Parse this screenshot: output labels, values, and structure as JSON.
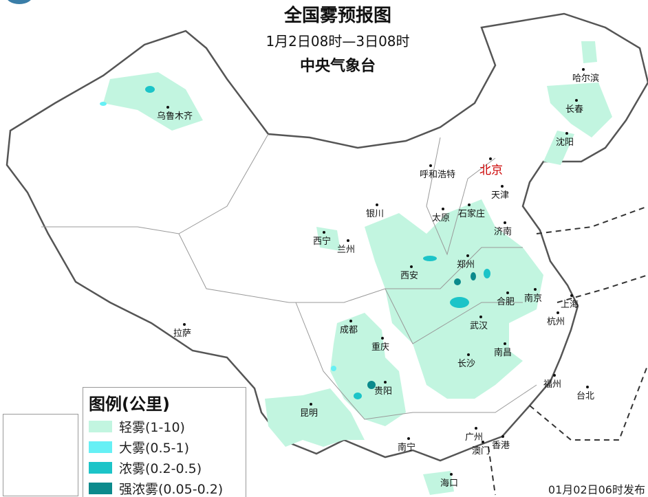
{
  "header": {
    "title": "全国雾预报图",
    "period": "1月2日08时—3日08时",
    "issuer": "中央气象台"
  },
  "legend": {
    "title": "图例(公里)",
    "items": [
      {
        "label": "轻雾(1-10)",
        "color": "#c2f5e0"
      },
      {
        "label": "大雾(0.5-1)",
        "color": "#66f0f5"
      },
      {
        "label": "浓雾(0.2-0.5)",
        "color": "#1cc4c8"
      },
      {
        "label": "强浓雾(0.05-0.2)",
        "color": "#0b8a8c"
      }
    ]
  },
  "cities": [
    {
      "name": "乌鲁木齐"
    },
    {
      "name": "哈尔滨"
    },
    {
      "name": "长春"
    },
    {
      "name": "沈阳"
    },
    {
      "name": "北京",
      "capital": true
    },
    {
      "name": "天津"
    },
    {
      "name": "呼和浩特"
    },
    {
      "name": "银川"
    },
    {
      "name": "太原"
    },
    {
      "name": "石家庄"
    },
    {
      "name": "济南"
    },
    {
      "name": "西宁"
    },
    {
      "name": "兰州"
    },
    {
      "name": "西安"
    },
    {
      "name": "郑州"
    },
    {
      "name": "合肥"
    },
    {
      "name": "南京"
    },
    {
      "name": "上海"
    },
    {
      "name": "杭州"
    },
    {
      "name": "拉萨"
    },
    {
      "name": "成都"
    },
    {
      "name": "重庆"
    },
    {
      "name": "武汉"
    },
    {
      "name": "长沙"
    },
    {
      "name": "南昌"
    },
    {
      "name": "贵阳"
    },
    {
      "name": "福州"
    },
    {
      "name": "台北"
    },
    {
      "name": "昆明"
    },
    {
      "name": "南宁"
    },
    {
      "name": "广州"
    },
    {
      "name": "香港"
    },
    {
      "name": "澳门"
    },
    {
      "name": "海口"
    }
  ],
  "footer": {
    "issued": "01月02日06时发布"
  }
}
